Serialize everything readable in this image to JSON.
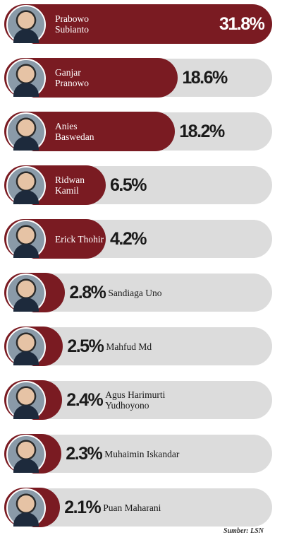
{
  "chart_data": {
    "type": "bar",
    "orientation": "horizontal",
    "categories": [
      "Prabowo Subianto",
      "Ganjar Pranowo",
      "Anies Baswedan",
      "Ridwan Kamil",
      "Erick Thohir",
      "Sandiaga Uno",
      "Mahfud Md",
      "Agus Harimurti Yudhoyono",
      "Muhaimin Iskandar",
      "Puan Maharani"
    ],
    "values": [
      31.8,
      18.6,
      18.2,
      6.5,
      4.2,
      2.8,
      2.5,
      2.4,
      2.3,
      2.1
    ],
    "value_labels": [
      "31.8%",
      "18.6%",
      "18.2%",
      "6.5%",
      "4.2%",
      "2.8%",
      "2.5%",
      "2.4%",
      "2.3%",
      "2.1%"
    ],
    "color": "#7a1b22",
    "source": "Sumber: LSN"
  }
}
